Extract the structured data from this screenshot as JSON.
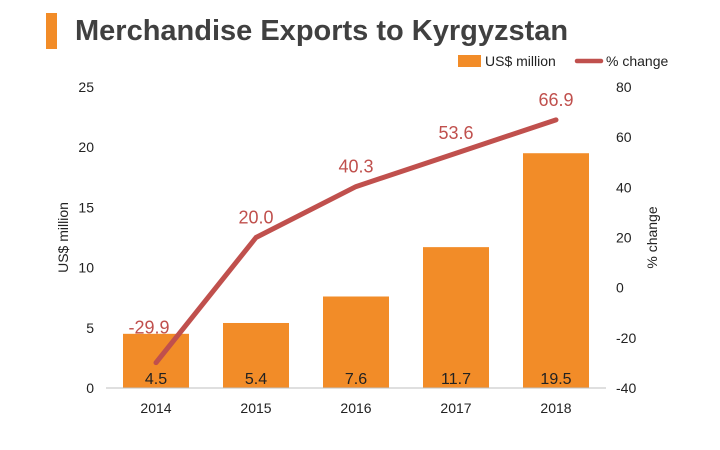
{
  "title": "Merchandise Exports to Kyrgyzstan",
  "colors": {
    "bar": "#f28c28",
    "line": "#c0504d",
    "text": "#222222",
    "title_accent": "#f28c28"
  },
  "chart_data": {
    "type": "bar",
    "categories": [
      "2014",
      "2015",
      "2016",
      "2017",
      "2018"
    ],
    "series": [
      {
        "name": "US$ million",
        "type": "bar",
        "axis": "left",
        "values": [
          4.5,
          5.4,
          7.6,
          11.7,
          19.5
        ]
      },
      {
        "name": "% change",
        "type": "line",
        "axis": "right",
        "values": [
          -29.9,
          20.0,
          40.3,
          53.6,
          66.9
        ]
      }
    ],
    "value_labels": {
      "bar": [
        "4.5",
        "5.4",
        "7.6",
        "11.7",
        "19.5"
      ],
      "line": [
        "-29.9",
        "20.0",
        "40.3",
        "53.6",
        "66.9"
      ]
    },
    "ylabel": "US$ million",
    "y2label": "% change",
    "ylim": [
      0,
      25
    ],
    "y2lim": [
      -40,
      80
    ],
    "yticks": [
      0,
      5,
      10,
      15,
      20,
      25
    ],
    "y2ticks": [
      -40,
      -20,
      0,
      20,
      40,
      60,
      80
    ],
    "grid": false,
    "legend_position": "top-right"
  }
}
